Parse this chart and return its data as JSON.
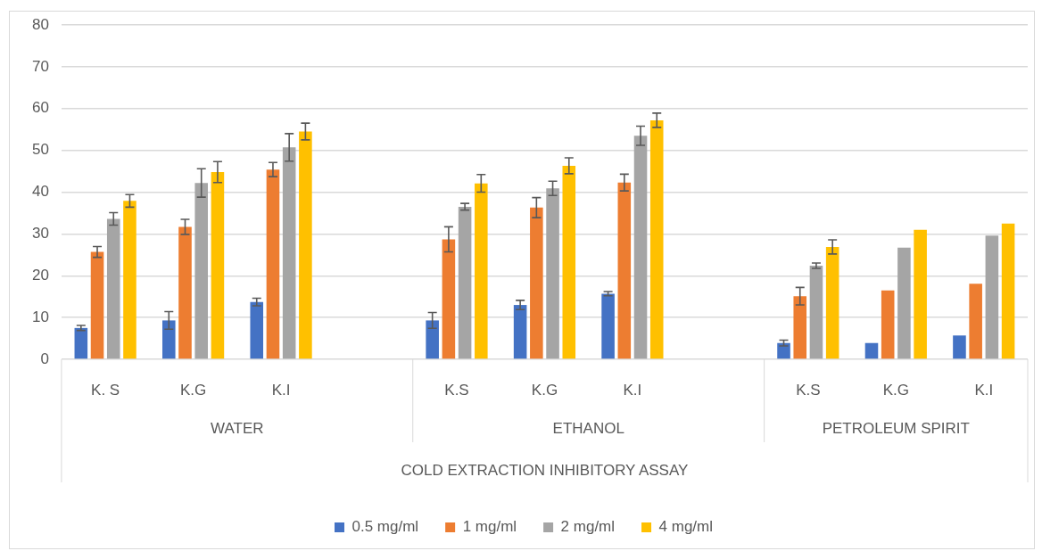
{
  "chart_data": {
    "type": "bar",
    "xlabel": "COLD EXTRACTION INHIBITORY ASSAY",
    "categories": [
      "K. S",
      "K.G",
      "K.I",
      null,
      "K.S",
      "K.G",
      "K.I",
      null,
      "K.S",
      "K.G",
      "K.I"
    ],
    "annotations": [
      "WATER",
      "ETHANOL",
      "PETROLEUM SPIRIT"
    ],
    "series": [
      {
        "name": "0.5 mg/ml",
        "color": "#4472c4",
        "values": [
          7.5,
          9.3,
          13.7,
          null,
          9.3,
          13.0,
          15.7,
          null,
          3.9,
          3.9,
          5.7
        ],
        "errors": [
          0.6,
          2.1,
          0.9,
          null,
          1.9,
          1.1,
          0.5,
          null,
          0.7,
          null,
          null
        ]
      },
      {
        "name": "1 mg/ml",
        "color": "#ed7d31",
        "values": [
          25.7,
          31.7,
          45.4,
          null,
          28.7,
          36.3,
          42.3,
          null,
          15.1,
          16.5,
          18.1
        ],
        "errors": [
          1.3,
          1.8,
          1.7,
          null,
          3.0,
          2.4,
          2.0,
          null,
          2.1,
          null,
          null
        ]
      },
      {
        "name": "2 mg/ml",
        "color": "#a5a5a5",
        "values": [
          33.6,
          42.2,
          50.7,
          null,
          36.5,
          40.9,
          53.5,
          null,
          22.4,
          26.7,
          29.6
        ],
        "errors": [
          1.5,
          3.4,
          3.3,
          null,
          0.8,
          1.7,
          2.3,
          null,
          0.65,
          null,
          null
        ]
      },
      {
        "name": "4 mg/ml",
        "color": "#ffc000",
        "values": [
          37.9,
          44.8,
          54.5,
          null,
          42.1,
          46.3,
          57.2,
          null,
          26.9,
          31.0,
          32.5
        ],
        "errors": [
          1.5,
          2.5,
          2.0,
          null,
          2.1,
          1.9,
          1.7,
          null,
          1.7,
          null,
          null
        ]
      }
    ],
    "ylim": [
      0,
      80
    ],
    "yticks": [
      0,
      10,
      20,
      30,
      40,
      50,
      60,
      70,
      80
    ],
    "grid": "y",
    "legend": "bottom"
  }
}
